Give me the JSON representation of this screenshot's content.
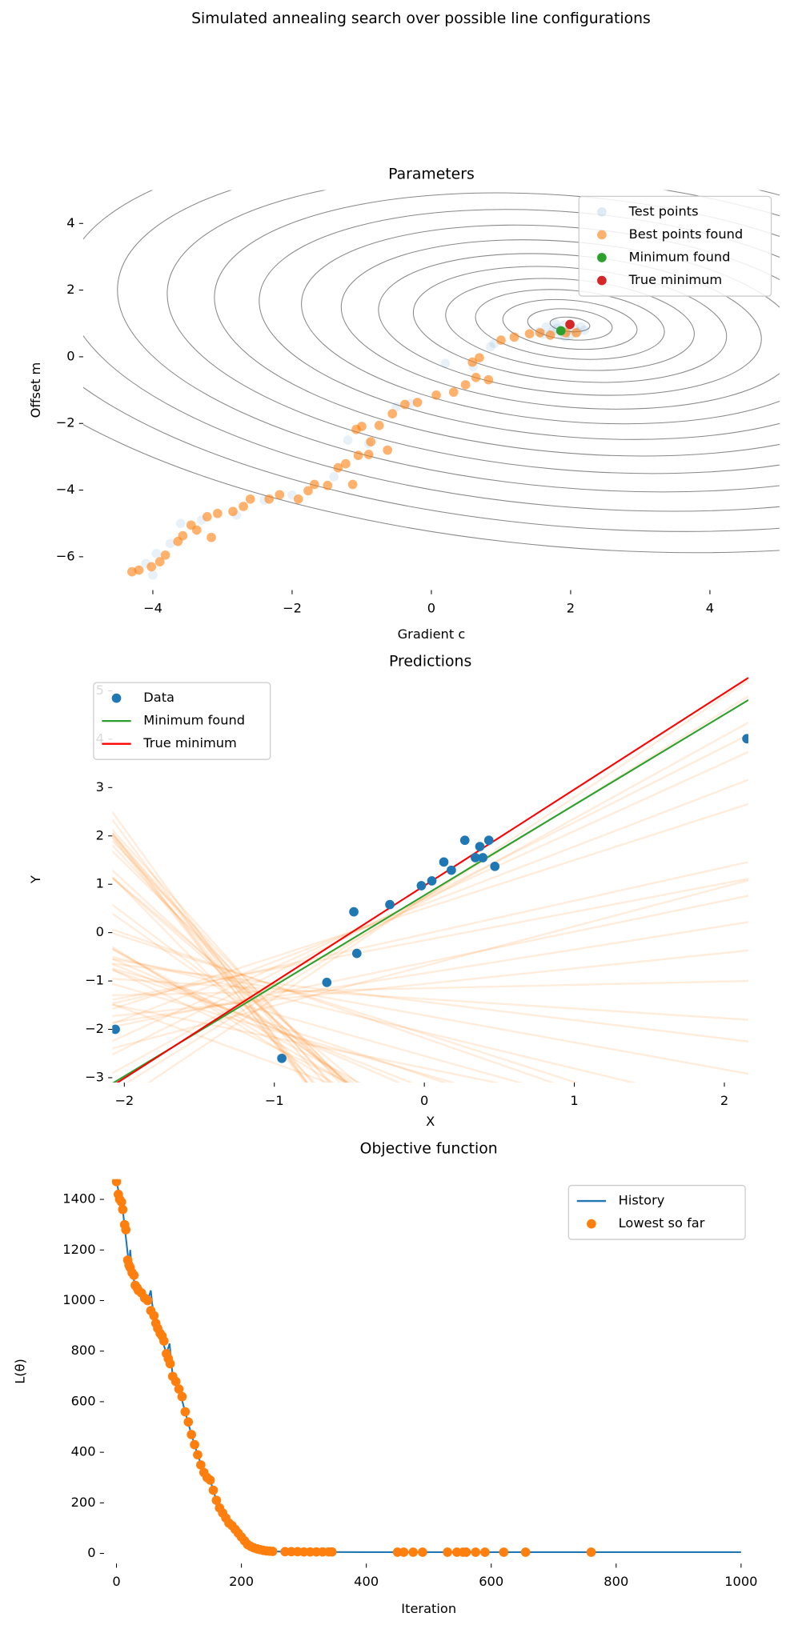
{
  "title": "Simulated annealing search over possible line configurations",
  "chart_data": [
    {
      "type": "scatter",
      "title": "Parameters",
      "xlabel": "Gradient c",
      "ylabel": "Offset m",
      "xlim": [
        -5,
        5
      ],
      "ylim": [
        -7,
        5
      ],
      "xticks": [
        {
          "value": -4,
          "label": "−4"
        },
        {
          "value": -2,
          "label": "−2"
        },
        0,
        2,
        4
      ],
      "yticks": [
        {
          "value": -6,
          "label": "−6"
        },
        {
          "value": -4,
          "label": "−4"
        },
        {
          "value": -2,
          "label": "−2"
        },
        0,
        2,
        4
      ],
      "legend": "upper right",
      "contours": true,
      "series": [
        {
          "name": "Test points",
          "type": "scatter",
          "color": "#1f77b4",
          "alpha": 0.1,
          "x": [
            1.55,
            1.65,
            1.7,
            1.8,
            1.85,
            1.9,
            1.95,
            2.0,
            2.05,
            2.1,
            2.15,
            1.75,
            1.6,
            2.2,
            1.92,
            1.78,
            -4.0,
            -4.1,
            -3.95,
            -3.75,
            -3.6,
            -3.3,
            -2.8,
            -2.4,
            -2.0,
            -1.4,
            -1.2,
            -0.9,
            -0.5,
            -0.3,
            0.2,
            0.6,
            0.9,
            0.85
          ],
          "values": [
            0.75,
            0.9,
            0.65,
            0.85,
            0.7,
            0.95,
            0.8,
            0.65,
            0.85,
            0.75,
            0.9,
            0.78,
            0.68,
            0.8,
            0.6,
            1.0,
            -6.55,
            -6.2,
            -5.9,
            -5.6,
            -5.0,
            -4.9,
            -4.75,
            -4.3,
            -4.15,
            -3.6,
            -2.5,
            -2.6,
            -1.5,
            -1.4,
            -0.2,
            -0.3,
            0.4,
            0.3
          ]
        },
        {
          "name": "Best points found",
          "type": "scatter",
          "color": "#ff7f0e",
          "alpha": 0.6,
          "x": [
            -4.3,
            -4.2,
            -4.02,
            -3.9,
            -3.82,
            -3.64,
            -3.57,
            -3.45,
            -3.37,
            -3.16,
            -3.22,
            -3.07,
            -2.85,
            -2.7,
            -2.6,
            -2.33,
            -2.18,
            -1.91,
            -1.77,
            -1.68,
            -1.49,
            -1.34,
            -1.23,
            -1.13,
            -1.05,
            -0.9,
            -0.87,
            -1.08,
            -1.0,
            -0.75,
            -0.63,
            -0.56,
            -0.38,
            -0.2,
            0.07,
            0.32,
            0.49,
            0.64,
            0.82,
            0.59,
            0.69,
            1.0,
            1.19,
            1.41,
            1.56,
            1.71,
            1.93,
            2.08
          ],
          "values": [
            -6.45,
            -6.4,
            -6.3,
            -6.15,
            -5.95,
            -5.54,
            -5.37,
            -5.05,
            -5.2,
            -5.42,
            -4.8,
            -4.7,
            -4.64,
            -4.49,
            -4.27,
            -4.27,
            -4.14,
            -4.27,
            -4.02,
            -3.83,
            -3.86,
            -3.33,
            -3.21,
            -3.83,
            -2.96,
            -2.93,
            -2.55,
            -2.18,
            -2.09,
            -2.06,
            -2.8,
            -1.71,
            -1.43,
            -1.37,
            -1.15,
            -1.06,
            -0.84,
            -0.62,
            -0.69,
            -0.16,
            -0.03,
            0.5,
            0.59,
            0.69,
            0.72,
            0.65,
            0.72,
            0.72
          ]
        },
        {
          "name": "Minimum found",
          "type": "scatter",
          "color": "#2ca02c",
          "alpha": 1,
          "x": [
            1.86
          ],
          "values": [
            0.78
          ]
        },
        {
          "name": "True minimum",
          "type": "scatter",
          "color": "#d62728",
          "alpha": 1,
          "x": [
            1.99
          ],
          "values": [
            0.97
          ]
        }
      ]
    },
    {
      "type": "scatter",
      "title": "Predictions",
      "xlabel": "X",
      "ylabel": "Y",
      "xlim": [
        -2.08,
        2.16
      ],
      "ylim": [
        -3.1,
        5.3
      ],
      "xticks": [
        {
          "value": -2,
          "label": "−2"
        },
        {
          "value": -1,
          "label": "−1"
        },
        0,
        1,
        2
      ],
      "yticks": [
        {
          "value": -3,
          "label": "−3"
        },
        {
          "value": -2,
          "label": "−2"
        },
        {
          "value": -1,
          "label": "−1"
        },
        0,
        1,
        2,
        3,
        4,
        5
      ],
      "legend": "upper left",
      "candidate_lines": true,
      "series": [
        {
          "name": "Data",
          "type": "scatter",
          "color": "#1f77b4",
          "alpha": 1,
          "x": [
            -2.06,
            -0.95,
            -0.65,
            -0.47,
            -0.45,
            -0.23,
            -0.02,
            0.05,
            0.13,
            0.18,
            0.27,
            0.34,
            0.37,
            0.39,
            0.43,
            0.47,
            2.15
          ],
          "values": [
            -2.0,
            -2.6,
            -1.03,
            0.43,
            -0.43,
            0.58,
            0.97,
            1.07,
            1.46,
            1.29,
            1.91,
            1.55,
            1.78,
            1.55,
            1.91,
            1.37,
            4.01
          ]
        },
        {
          "name": "Minimum found",
          "type": "line",
          "color": "#2ca02c",
          "alpha": 1,
          "x": [
            -2.08,
            2.16
          ],
          "values": [
            -3.12,
            4.81
          ]
        },
        {
          "name": "True minimum",
          "type": "line",
          "color": "#ff0000",
          "alpha": 1,
          "x": [
            -2.08,
            2.16
          ],
          "values": [
            -3.17,
            5.27
          ]
        }
      ]
    },
    {
      "type": "line",
      "title": "Objective function",
      "xlabel": "Iteration",
      "ylabel": "L(θ)",
      "xlim": [
        -20,
        1020
      ],
      "ylim": [
        -40,
        1480
      ],
      "xticks": [
        0,
        200,
        400,
        600,
        800,
        1000
      ],
      "yticks": [
        0,
        200,
        400,
        600,
        800,
        1000,
        1200,
        1400
      ],
      "legend": "upper right",
      "series": [
        {
          "name": "History",
          "type": "line",
          "color": "#1f77b4",
          "alpha": 1,
          "x": [
            0,
            10,
            20,
            22,
            25,
            30,
            40,
            50,
            55,
            57,
            60,
            70,
            80,
            85,
            90,
            100,
            110,
            120,
            130,
            140,
            150,
            160,
            170,
            180,
            190,
            200,
            210,
            220,
            230,
            240,
            250,
            300,
            400,
            500,
            600,
            700,
            800,
            900,
            1000
          ],
          "values": [
            1470,
            1360,
            1140,
            1200,
            1110,
            1060,
            1030,
            1000,
            1040,
            990,
            940,
            870,
            790,
            830,
            700,
            650,
            560,
            470,
            390,
            320,
            290,
            210,
            160,
            120,
            95,
            65,
            35,
            22,
            15,
            10,
            8,
            6,
            5,
            5,
            5,
            5,
            5,
            5,
            5
          ]
        },
        {
          "name": "Lowest so far",
          "type": "scatter",
          "color": "#ff7f0e",
          "alpha": 1,
          "x": [
            0,
            3,
            5,
            8,
            10,
            13,
            15,
            18,
            20,
            22,
            25,
            28,
            30,
            33,
            35,
            40,
            45,
            50,
            55,
            60,
            63,
            66,
            70,
            73,
            76,
            80,
            83,
            86,
            90,
            95,
            100,
            105,
            110,
            115,
            120,
            125,
            130,
            135,
            140,
            145,
            150,
            155,
            160,
            165,
            170,
            175,
            180,
            185,
            190,
            195,
            200,
            205,
            210,
            215,
            220,
            225,
            230,
            235,
            240,
            245,
            250,
            270,
            280,
            290,
            300,
            310,
            320,
            330,
            340,
            345,
            450,
            460,
            475,
            490,
            530,
            545,
            555,
            560,
            575,
            590,
            620,
            655,
            760
          ],
          "values": [
            1470,
            1420,
            1400,
            1390,
            1360,
            1300,
            1280,
            1160,
            1140,
            1130,
            1110,
            1100,
            1060,
            1050,
            1040,
            1030,
            1010,
            1000,
            960,
            940,
            910,
            890,
            870,
            860,
            840,
            790,
            770,
            750,
            700,
            680,
            650,
            620,
            560,
            520,
            470,
            430,
            390,
            350,
            320,
            300,
            290,
            250,
            210,
            180,
            160,
            140,
            120,
            110,
            95,
            80,
            65,
            50,
            35,
            28,
            22,
            18,
            15,
            12,
            10,
            9,
            8,
            7,
            7,
            7,
            6,
            6,
            6,
            6,
            6,
            6,
            5,
            5,
            5,
            5,
            5,
            5,
            5,
            5,
            5,
            5,
            5,
            5,
            5
          ]
        }
      ]
    }
  ]
}
